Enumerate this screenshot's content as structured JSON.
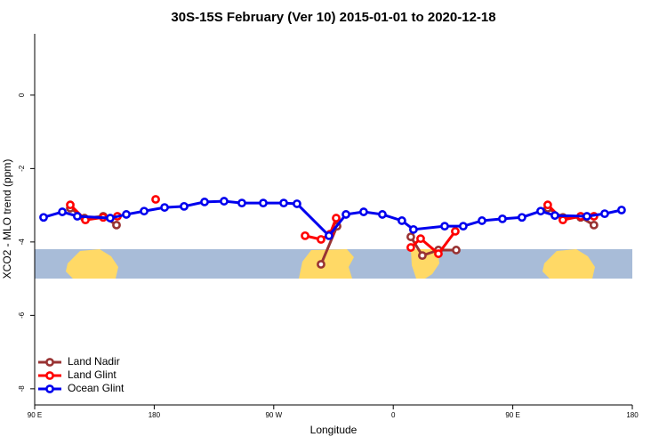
{
  "chart_data": {
    "type": "line",
    "title": "30S-15S February (Ver 10)   2015-01-01 to 2020-12-18",
    "xlabel": "Longitude",
    "ylabel": "XCO2 - MLO trend (ppm)",
    "xlim": [
      90,
      540
    ],
    "ylim": [
      -8.44,
      1.67
    ],
    "xticks": [
      {
        "value": 90,
        "label": "90 E"
      },
      {
        "value": 180,
        "label": "180"
      },
      {
        "value": 270,
        "label": "90 W"
      },
      {
        "value": 360,
        "label": "0"
      },
      {
        "value": 450,
        "label": "90 E"
      },
      {
        "value": 540,
        "label": "180"
      }
    ],
    "yticks": [
      0,
      -2,
      -4,
      -6,
      -8
    ],
    "legend": "bottom-left",
    "series": [
      {
        "name": "Land Nadir",
        "color": "#993333",
        "x": [
          116.8,
          127.5,
          141.6,
          151.6,
          null,
          305.6,
          317.7,
          null,
          373.2,
          381.9,
          394.0,
          407.4,
          null,
          476.3,
          487.7,
          501.1,
          511.1
        ],
        "values": [
          -3.08,
          -3.35,
          -3.3,
          -3.54,
          null,
          -4.61,
          -3.57,
          null,
          -3.86,
          -4.37,
          -4.22,
          -4.22,
          null,
          -3.08,
          -3.33,
          -3.33,
          -3.54
        ]
      },
      {
        "name": "Land Glint",
        "color": "#ff0000",
        "x": [
          116.8,
          128.2,
          141.6,
          152.3,
          null,
          181.1,
          null,
          293.6,
          305.6,
          312.3,
          317.0,
          null,
          373.2,
          380.6,
          394.0,
          406.7,
          null,
          476.3,
          487.7,
          501.1,
          511.1
        ],
        "values": [
          -2.99,
          -3.4,
          -3.33,
          -3.3,
          null,
          -2.84,
          null,
          -3.83,
          -3.93,
          -3.79,
          -3.35,
          null,
          -4.15,
          -3.91,
          -4.32,
          -3.71,
          null,
          -2.99,
          -3.4,
          -3.3,
          -3.3
        ]
      },
      {
        "name": "Ocean Glint",
        "color": "#0000ee",
        "x": [
          96.7,
          110.8,
          122.1,
          146.9,
          159.0,
          172.4,
          187.8,
          202.5,
          217.9,
          232.6,
          246.0,
          262.1,
          277.5,
          287.5,
          311.6,
          324.4,
          337.7,
          351.8,
          366.5,
          375.2,
          398.7,
          412.7,
          426.8,
          442.2,
          456.9,
          471.0,
          481.7,
          505.8,
          519.2,
          531.9
        ],
        "values": [
          -3.33,
          -3.18,
          -3.3,
          -3.35,
          -3.25,
          -3.16,
          -3.06,
          -3.03,
          -2.91,
          -2.89,
          -2.94,
          -2.94,
          -2.94,
          -2.96,
          -3.83,
          -3.25,
          -3.18,
          -3.25,
          -3.42,
          -3.66,
          -3.57,
          -3.57,
          -3.42,
          -3.37,
          -3.33,
          -3.16,
          -3.28,
          -3.3,
          -3.23,
          -3.13
        ]
      }
    ]
  }
}
